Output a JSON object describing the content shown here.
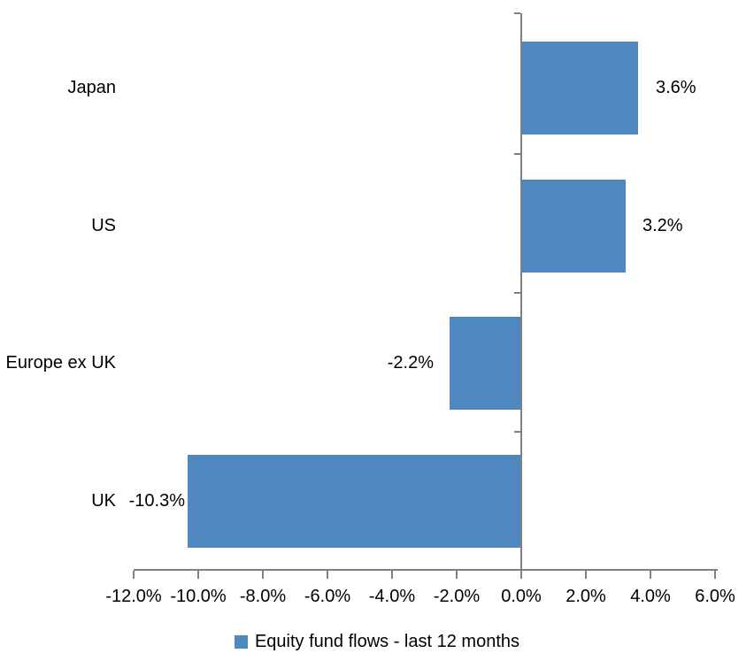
{
  "chart_data": {
    "type": "bar",
    "orientation": "horizontal",
    "title": "",
    "categories": [
      "Japan",
      "US",
      "Europe ex UK",
      "UK"
    ],
    "series": [
      {
        "name": "Equity fund flows - last 12 months",
        "values": [
          3.6,
          3.2,
          -2.2,
          -10.3
        ],
        "value_labels": [
          "3.6%",
          "3.2%",
          "-2.2%",
          "-10.3%"
        ]
      }
    ],
    "xlabel": "",
    "ylabel": "",
    "xlim": [
      -12,
      6
    ],
    "x_tick_step": 2,
    "x_tick_labels": [
      "-12.0%",
      "-10.0%",
      "-8.0%",
      "-6.0%",
      "-4.0%",
      "-2.0%",
      "0.0%",
      "2.0%",
      "4.0%",
      "6.0%"
    ],
    "grid": false,
    "legend_position": "bottom-center",
    "bar_color": "#4E88BF",
    "axis_color": "#808080",
    "text_color": "#000000",
    "value_label_gaps": [
      20,
      19,
      18,
      3
    ]
  },
  "legend": {
    "label": "Equity fund flows - last 12 months"
  }
}
